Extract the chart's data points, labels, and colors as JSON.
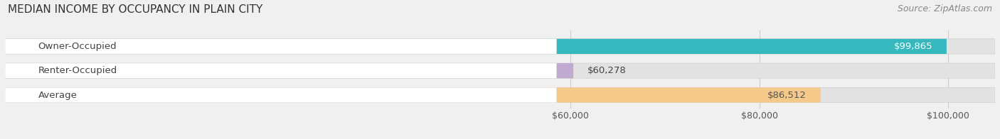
{
  "title": "MEDIAN INCOME BY OCCUPANCY IN PLAIN CITY",
  "source": "Source: ZipAtlas.com",
  "categories": [
    "Owner-Occupied",
    "Renter-Occupied",
    "Average"
  ],
  "values": [
    99865,
    60278,
    86512
  ],
  "bar_colors": [
    "#35b8be",
    "#c0aad0",
    "#f5c98a"
  ],
  "value_labels": [
    "$99,865",
    "$60,278",
    "$86,512"
  ],
  "value_label_colors": [
    "#ffffff",
    "#555555",
    "#555555"
  ],
  "xmin": 0,
  "xmax": 105000,
  "xticks": [
    60000,
    80000,
    100000
  ],
  "xticklabels": [
    "$60,000",
    "$80,000",
    "$100,000"
  ],
  "background_color": "#f0f0f0",
  "bar_bg_color": "#e2e2e2",
  "title_fontsize": 11,
  "source_fontsize": 9,
  "label_fontsize": 9.5,
  "value_fontsize": 9.5,
  "tick_fontsize": 9
}
